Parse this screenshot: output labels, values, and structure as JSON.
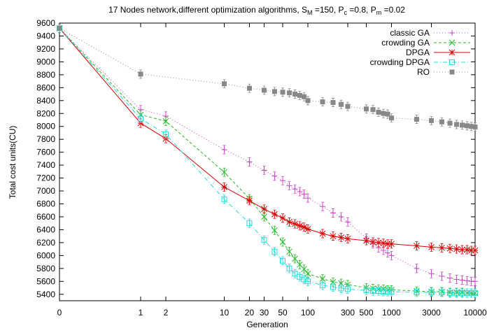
{
  "chart_data": {
    "type": "line",
    "title_parts": {
      "prefix": "17 Nodes network,different optimization algorithms, S",
      "s_sub": "M",
      "s_val": " =150, P",
      "pc_sub": "c",
      "pc_val": " =0.8, P",
      "pm_sub": "m",
      "pm_val": " =0.02"
    },
    "xlabel": "Generation",
    "ylabel": "Total cost units(CU)",
    "x_scale": "log",
    "x_ticks": [
      {
        "v": 0,
        "label": "0"
      },
      {
        "v": 1,
        "label": "1"
      },
      {
        "v": 2,
        "label": "2"
      },
      {
        "v": 10,
        "label": "10"
      },
      {
        "v": 20,
        "label": "20"
      },
      {
        "v": 30,
        "label": "30"
      },
      {
        "v": 50,
        "label": "50"
      },
      {
        "v": 100,
        "label": "100"
      },
      {
        "v": 300,
        "label": "300"
      },
      {
        "v": 500,
        "label": "500"
      },
      {
        "v": 1000,
        "label": "1000"
      },
      {
        "v": 3000,
        "label": "3000"
      },
      {
        "v": 10000,
        "label": "10000"
      }
    ],
    "ylim": [
      5300,
      9600
    ],
    "y_ticks": [
      "5400",
      "5600",
      "5800",
      "6000",
      "6200",
      "6400",
      "6600",
      "6800",
      "7000",
      "7200",
      "7400",
      "7600",
      "7800",
      "8000",
      "8200",
      "8400",
      "8600",
      "8800",
      "9000",
      "9200",
      "9400",
      "9600"
    ],
    "legend_position": "top-right",
    "series": [
      {
        "name": "classic GA",
        "color": "#cc44cc",
        "dash": "1,3",
        "marker": "plus",
        "x": [
          0,
          1,
          2,
          10,
          20,
          30,
          40,
          50,
          60,
          70,
          80,
          90,
          100,
          150,
          200,
          250,
          300,
          500,
          600,
          700,
          800,
          900,
          1000,
          2000,
          3000,
          4000,
          5000,
          6000,
          7000,
          8000,
          9000,
          10000
        ],
        "y": [
          9520,
          8260,
          8160,
          7640,
          7450,
          7320,
          7230,
          7160,
          7080,
          7030,
          6990,
          6950,
          6890,
          6760,
          6660,
          6600,
          6520,
          6270,
          6180,
          6120,
          6080,
          6040,
          6000,
          5800,
          5720,
          5680,
          5650,
          5630,
          5620,
          5610,
          5600,
          5600
        ]
      },
      {
        "name": "crowding GA",
        "color": "#22bb22",
        "dash": "4,3",
        "marker": "cross",
        "x": [
          0,
          1,
          2,
          10,
          20,
          30,
          40,
          50,
          60,
          70,
          80,
          90,
          100,
          150,
          200,
          250,
          300,
          500,
          600,
          700,
          800,
          900,
          1000,
          2000,
          3000,
          4000,
          5000,
          6000,
          7000,
          8000,
          9000,
          10000
        ],
        "y": [
          9520,
          8180,
          8080,
          7290,
          6880,
          6600,
          6390,
          6210,
          6060,
          5950,
          5860,
          5790,
          5720,
          5640,
          5590,
          5570,
          5550,
          5500,
          5490,
          5480,
          5480,
          5470,
          5470,
          5450,
          5440,
          5440,
          5430,
          5430,
          5430,
          5420,
          5420,
          5420
        ]
      },
      {
        "name": "DPGA",
        "color": "#dd0000",
        "dash": "",
        "marker": "star",
        "x": [
          0,
          1,
          2,
          10,
          20,
          30,
          40,
          50,
          60,
          70,
          80,
          90,
          100,
          150,
          200,
          250,
          300,
          500,
          600,
          700,
          800,
          900,
          1000,
          2000,
          3000,
          4000,
          5000,
          6000,
          7000,
          8000,
          9000,
          10000
        ],
        "y": [
          9520,
          8050,
          7810,
          7060,
          6850,
          6720,
          6640,
          6580,
          6520,
          6490,
          6460,
          6440,
          6410,
          6340,
          6300,
          6280,
          6260,
          6230,
          6210,
          6200,
          6190,
          6180,
          6180,
          6150,
          6130,
          6120,
          6110,
          6100,
          6090,
          6090,
          6080,
          6080
        ]
      },
      {
        "name": "crowding DPGA",
        "color": "#22dddd",
        "dash": "6,3,1,3",
        "marker": "square-open",
        "x": [
          0,
          1,
          2,
          10,
          20,
          30,
          40,
          50,
          60,
          70,
          80,
          90,
          100,
          150,
          200,
          250,
          300,
          500,
          600,
          700,
          800,
          900,
          1000,
          2000,
          3000,
          4000,
          5000,
          6000,
          7000,
          8000,
          9000,
          10000
        ],
        "y": [
          9520,
          8120,
          7880,
          6870,
          6500,
          6240,
          6060,
          5920,
          5800,
          5720,
          5670,
          5630,
          5600,
          5540,
          5510,
          5490,
          5480,
          5460,
          5450,
          5450,
          5440,
          5440,
          5440,
          5430,
          5430,
          5430,
          5420,
          5420,
          5420,
          5420,
          5420,
          5420
        ]
      },
      {
        "name": "RO",
        "color": "#888888",
        "dash": "1,3",
        "marker": "square-filled",
        "x": [
          0,
          1,
          10,
          20,
          30,
          40,
          50,
          60,
          70,
          80,
          90,
          100,
          150,
          200,
          250,
          300,
          500,
          600,
          700,
          800,
          900,
          1000,
          2000,
          3000,
          4000,
          5000,
          6000,
          7000,
          8000,
          9000,
          10000
        ],
        "y": [
          9520,
          8810,
          8660,
          8590,
          8560,
          8540,
          8530,
          8520,
          8500,
          8480,
          8460,
          8400,
          8380,
          8370,
          8340,
          8310,
          8270,
          8260,
          8220,
          8200,
          8190,
          8130,
          8110,
          8090,
          8070,
          8050,
          8030,
          8020,
          8010,
          8000,
          7990
        ]
      }
    ]
  }
}
